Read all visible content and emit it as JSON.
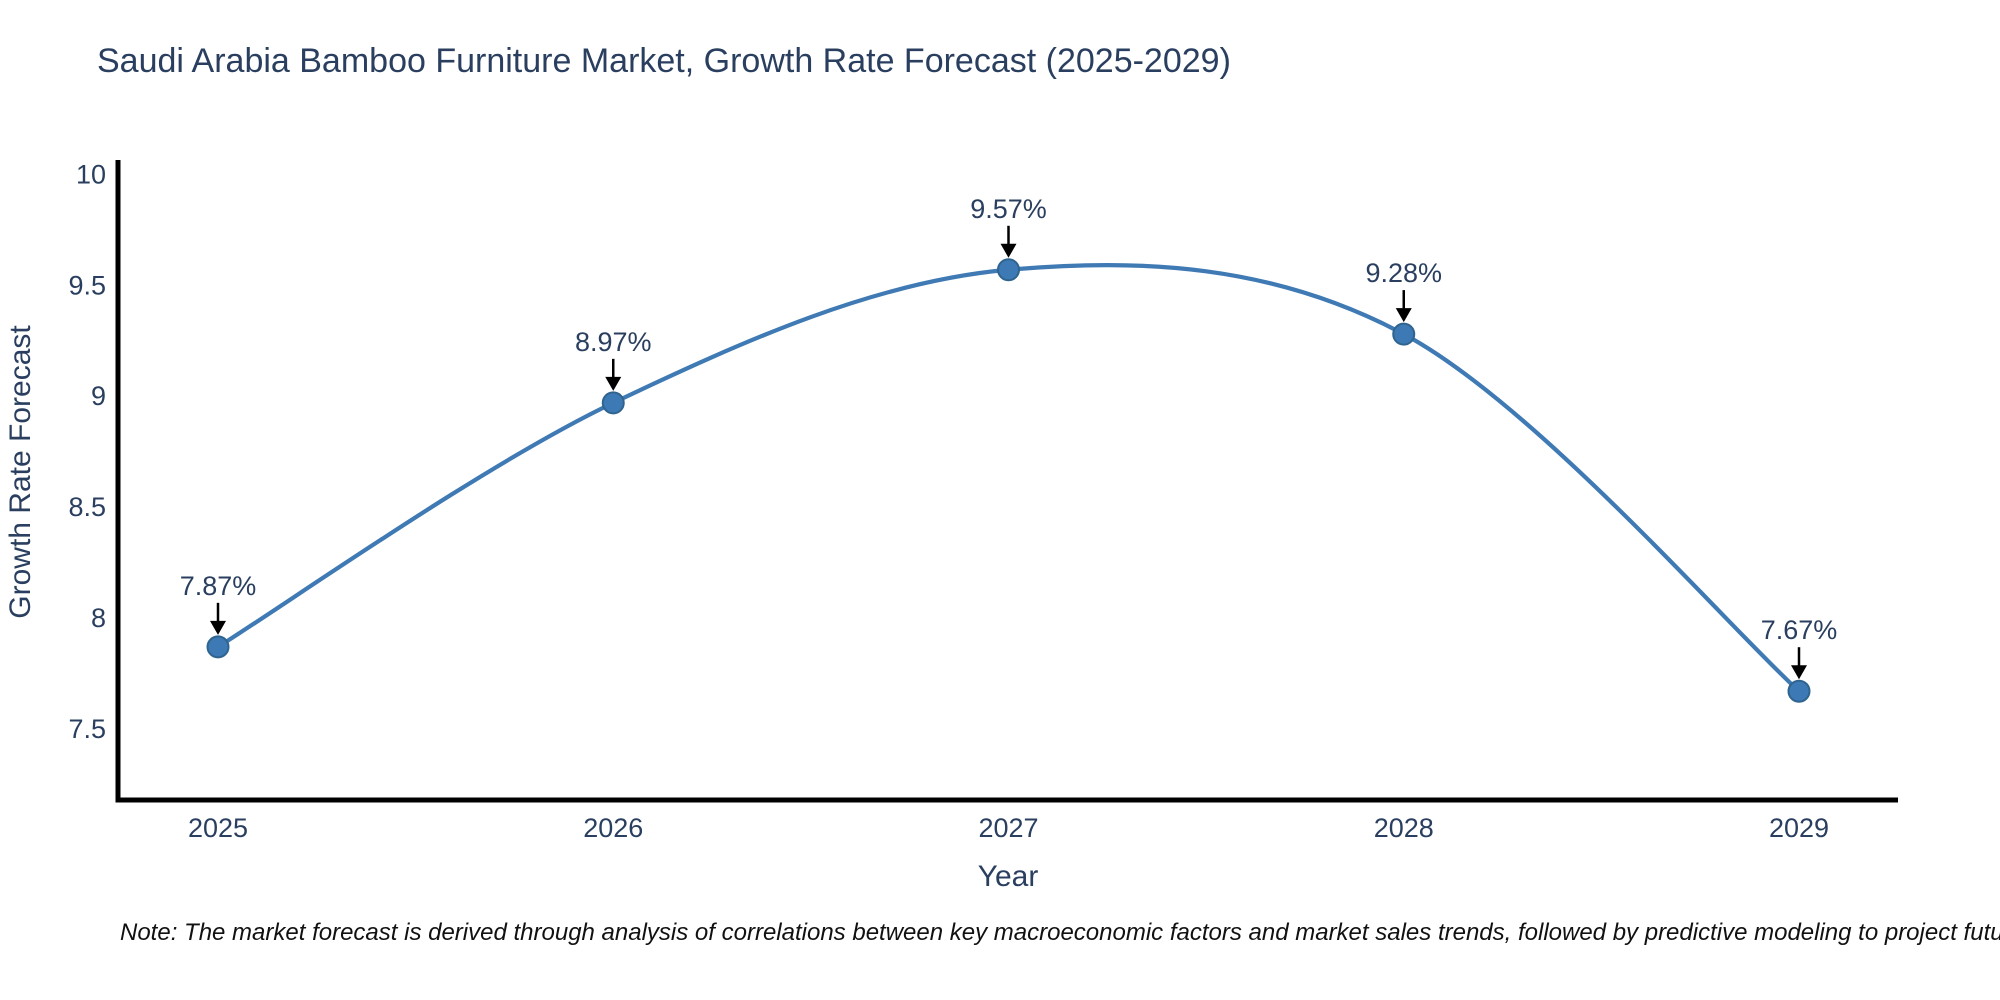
{
  "title": "Saudi Arabia Bamboo Furniture Market, Growth Rate Forecast (2025-2029)",
  "note": "Note: The market forecast is derived through analysis of correlations between key macroeconomic factors and market sales trends, followed by predictive modeling to project future sales",
  "chart_data": {
    "type": "line",
    "title": "Saudi Arabia Bamboo Furniture Market, Growth Rate Forecast (2025-2029)",
    "xlabel": "Year",
    "ylabel": "Growth Rate Forecast",
    "categories": [
      "2025",
      "2026",
      "2027",
      "2028",
      "2029"
    ],
    "values": [
      7.87,
      8.97,
      9.57,
      9.28,
      7.67
    ],
    "point_labels": [
      "7.87%",
      "8.97%",
      "9.57%",
      "9.28%",
      "7.67%"
    ],
    "y_tick_values": [
      7.5,
      8,
      8.5,
      9,
      9.5,
      10
    ],
    "y_tick_labels": [
      "7.5",
      "8",
      "8.5",
      "9",
      "9.5",
      "10"
    ],
    "ylim": [
      7.15,
      10.07
    ],
    "line_shape": "spline",
    "grid": false,
    "legend": "none",
    "colors": {
      "line": "#3f7ab4",
      "marker_fill": "#3d79b4",
      "marker_edge": "#2f648f",
      "axis_line": "#000000",
      "text": "#2a3f5f",
      "annotation_arrow": "#000000",
      "note_text": "#111111",
      "background": "#ffffff"
    }
  }
}
